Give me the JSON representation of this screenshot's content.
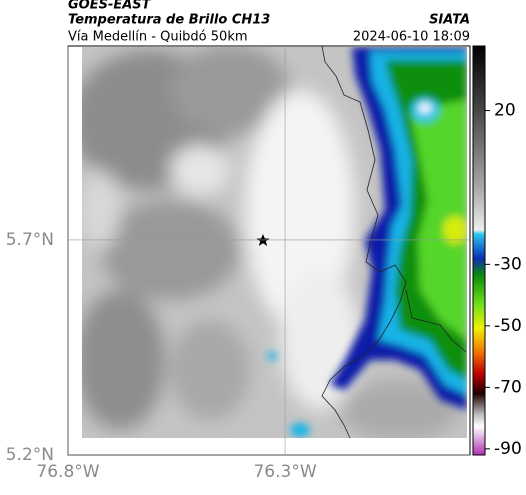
{
  "header": {
    "source": "GOES-EAST",
    "title": "Temperatura de Brillo CH13",
    "credit": "SIATA",
    "subtitle": "Vía Medellín - Quibdó 50km",
    "timestamp": "2024-06-10 18:09"
  },
  "map": {
    "lon_lim": [
      -76.8,
      -75.874
    ],
    "lat_lim": [
      5.2,
      6.151
    ],
    "lon_ticks": [
      {
        "value": -76.8,
        "label": "76.8°W"
      },
      {
        "value": -76.3,
        "label": "76.3°W"
      }
    ],
    "lat_ticks": [
      {
        "value": 5.7,
        "label": "5.7°N"
      },
      {
        "value": 5.2,
        "label": "5.2°N"
      }
    ],
    "grid": true
  },
  "colorbar": {
    "lim": [
      -92,
      41
    ],
    "ticks": [
      20,
      -30,
      -50,
      -70,
      -90
    ]
  }
}
